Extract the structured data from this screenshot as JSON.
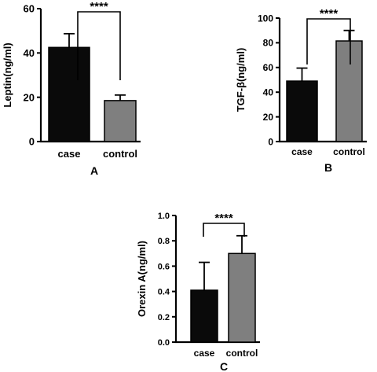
{
  "chart_data": [
    {
      "id": "A",
      "type": "bar",
      "panel_label": "A",
      "ylabel": "Leptin(ng/ml)",
      "categories": [
        "case",
        "control"
      ],
      "values": [
        42.5,
        18.5
      ],
      "errors": [
        6.2,
        2.5
      ],
      "colors": [
        "#0a0a0a",
        "#7f7f7f"
      ],
      "ylim": [
        0,
        60
      ],
      "yticks": [
        0,
        20,
        40,
        60
      ],
      "tick_labels": [
        "0",
        "20",
        "40",
        "60"
      ],
      "significance": "****"
    },
    {
      "id": "B",
      "type": "bar",
      "panel_label": "B",
      "ylabel": "TGF-β(ng/ml)",
      "categories": [
        "case",
        "control"
      ],
      "values": [
        49,
        81.5
      ],
      "errors": [
        10.5,
        8.5
      ],
      "colors": [
        "#0a0a0a",
        "#7f7f7f"
      ],
      "ylim": [
        0,
        100
      ],
      "yticks": [
        0,
        20,
        40,
        60,
        80,
        100
      ],
      "tick_labels": [
        "0",
        "20",
        "40",
        "60",
        "80",
        "100"
      ],
      "significance": "****"
    },
    {
      "id": "C",
      "type": "bar",
      "panel_label": "C",
      "ylabel": "Orexin A(ng/ml)",
      "categories": [
        "case",
        "control"
      ],
      "values": [
        0.41,
        0.7
      ],
      "errors": [
        0.22,
        0.14
      ],
      "colors": [
        "#0a0a0a",
        "#7f7f7f"
      ],
      "ylim": [
        0,
        1.0
      ],
      "yticks": [
        0,
        0.2,
        0.4,
        0.6,
        0.8,
        1.0
      ],
      "tick_labels": [
        "0.0",
        "0.2",
        "0.4",
        "0.6",
        "0.8",
        "1.0"
      ],
      "significance": "****"
    }
  ]
}
